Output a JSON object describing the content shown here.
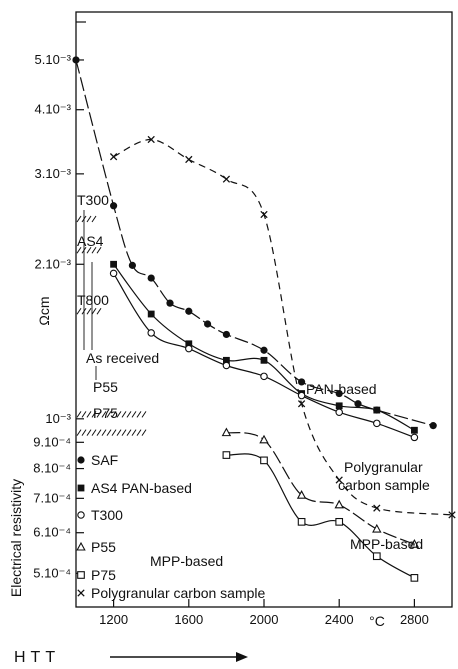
{
  "chart_data": {
    "type": "line",
    "xlabel": "HTT",
    "x_unit": "°C",
    "ylabel": "Electrical resistivity",
    "y_unit": "Ωcm",
    "y_scale": "log",
    "xlim": [
      1000,
      3000
    ],
    "ylim": [
      0.00043,
      0.0062
    ],
    "x_ticks": [
      1200,
      1600,
      2000,
      2400,
      2800
    ],
    "x_tick_labels": [
      "1200",
      "1600",
      "2000",
      "2400",
      "2800"
    ],
    "y_ticks": [
      0.0005,
      0.0006,
      0.0007,
      0.0008,
      0.0009,
      0.001,
      0.002,
      0.003,
      0.004,
      0.005
    ],
    "y_tick_labels": [
      "5.10⁻⁴",
      "6.10⁻⁴",
      "7.10⁻⁴",
      "8.10⁻⁴",
      "9.10⁻⁴",
      "10⁻³",
      "2.10⁻³",
      "3.10⁻³",
      "4.10⁻³",
      "5.10⁻³"
    ],
    "series": [
      {
        "name": "SAF",
        "marker": "filled-circle",
        "dash": "long-dash",
        "x": [
          1000,
          1200,
          1300,
          1400,
          1500,
          1600,
          1700,
          1800,
          2000,
          2200,
          2400,
          2500,
          2600,
          2900
        ],
        "y": [
          0.005,
          0.0026,
          0.00199,
          0.00188,
          0.00168,
          0.00162,
          0.00153,
          0.00146,
          0.00136,
          0.00118,
          0.00112,
          0.00107,
          0.00104,
          0.00097
        ]
      },
      {
        "name": "AS4 PAN-based",
        "marker": "filled-square",
        "dash": "solid",
        "x": [
          1200,
          1400,
          1600,
          1800,
          2000,
          2200,
          2400,
          2600,
          2800
        ],
        "y": [
          0.002,
          0.0016,
          0.0014,
          0.0013,
          0.0013,
          0.00112,
          0.00106,
          0.00104,
          0.00095
        ]
      },
      {
        "name": "T300",
        "marker": "open-circle",
        "dash": "solid",
        "x": [
          1200,
          1400,
          1600,
          1800,
          2000,
          2200,
          2400,
          2600,
          2800
        ],
        "y": [
          0.00192,
          0.00147,
          0.00137,
          0.00127,
          0.00121,
          0.00111,
          0.00103,
          0.00098,
          0.00092
        ]
      },
      {
        "name": "P55",
        "marker": "open-triangle",
        "dash": "long-dash",
        "x": [
          1800,
          2000,
          2200,
          2400,
          2600,
          2800
        ],
        "y": [
          0.00094,
          0.00091,
          0.00071,
          0.00068,
          0.00061,
          0.00057
        ]
      },
      {
        "name": "P75",
        "marker": "open-square",
        "dash": "solid",
        "x": [
          1800,
          2000,
          2200,
          2400,
          2600,
          2800
        ],
        "y": [
          0.00085,
          0.00083,
          0.00063,
          0.00063,
          0.00054,
          0.00049
        ]
      },
      {
        "name": "Polygranular carbon sample",
        "marker": "x",
        "dash": "dashed",
        "x": [
          1200,
          1400,
          1600,
          1800,
          2000,
          2200,
          2400,
          2600,
          3000
        ],
        "y": [
          0.00324,
          0.0035,
          0.0032,
          0.00293,
          0.0025,
          0.00107,
          0.00076,
          0.00067,
          0.00065
        ]
      }
    ],
    "hatched_bands": [
      {
        "label": "T300",
        "y": 0.00245
      },
      {
        "label": "AS4",
        "y": 0.00213
      },
      {
        "label": "T800",
        "y": 0.00162
      },
      {
        "label": "P55",
        "y": 0.00102
      },
      {
        "label": "P75",
        "y": 0.00094
      }
    ],
    "annotations": [
      "As received",
      "PAN-based",
      "Polygranular carbon sample",
      "MPP-based"
    ],
    "legend": {
      "placement": "bottom-left",
      "entries": [
        "SAF",
        "AS4 PAN-based",
        "T300",
        "P55",
        "P75",
        "Polygranular carbon sample"
      ],
      "group_labels": [
        "MPP-based"
      ]
    }
  }
}
